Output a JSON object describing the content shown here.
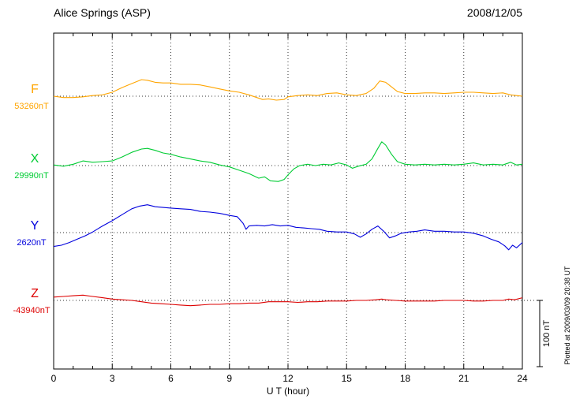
{
  "chart_data": {
    "type": "line",
    "title": "Alice Springs (ASP)",
    "date": "2008/12/05",
    "xlabel": "U T (hour)",
    "ylabel": "",
    "units": "nT",
    "xlim": [
      0,
      24
    ],
    "x_ticks": [
      0,
      3,
      6,
      9,
      12,
      15,
      18,
      21,
      24
    ],
    "x_minor_tick_interval": 1,
    "grid": "dotted vertical lines at 3-hour ticks; dotted horizontal baseline per trace",
    "scale_bar": {
      "label": "100 nT",
      "nT": 100
    },
    "footnote": "Plotted at 2009/03/09 20:38 UT",
    "series": [
      {
        "name": "F",
        "baseline_label": "53260nT",
        "color": "#FFA500",
        "points": [
          [
            0,
            0
          ],
          [
            0.5,
            -2
          ],
          [
            1,
            -2
          ],
          [
            1.5,
            -1
          ],
          [
            2,
            1
          ],
          [
            2.5,
            2
          ],
          [
            3,
            6
          ],
          [
            3.5,
            13
          ],
          [
            4,
            19
          ],
          [
            4.5,
            25
          ],
          [
            4.8,
            24
          ],
          [
            5.2,
            21
          ],
          [
            5.6,
            20
          ],
          [
            6,
            20
          ],
          [
            6.5,
            18
          ],
          [
            7,
            18
          ],
          [
            7.5,
            17
          ],
          [
            8,
            14
          ],
          [
            8.5,
            11
          ],
          [
            9,
            8
          ],
          [
            9.5,
            6
          ],
          [
            10,
            2
          ],
          [
            10.4,
            -2
          ],
          [
            10.7,
            -5
          ],
          [
            11,
            -4
          ],
          [
            11.4,
            -6
          ],
          [
            11.8,
            -5
          ],
          [
            12,
            -1
          ],
          [
            12.5,
            1
          ],
          [
            13,
            2
          ],
          [
            13.5,
            1
          ],
          [
            14,
            4
          ],
          [
            14.5,
            5
          ],
          [
            15,
            2
          ],
          [
            15.5,
            1
          ],
          [
            16,
            4
          ],
          [
            16.4,
            12
          ],
          [
            16.7,
            23
          ],
          [
            17,
            21
          ],
          [
            17.3,
            14
          ],
          [
            17.6,
            7
          ],
          [
            18,
            4
          ],
          [
            18.5,
            4
          ],
          [
            19,
            5
          ],
          [
            19.5,
            5
          ],
          [
            20,
            4
          ],
          [
            20.5,
            5
          ],
          [
            21,
            6
          ],
          [
            21.5,
            6
          ],
          [
            22,
            5
          ],
          [
            22.5,
            4
          ],
          [
            23,
            5
          ],
          [
            23.4,
            2
          ],
          [
            23.7,
            1
          ],
          [
            24,
            0
          ]
        ]
      },
      {
        "name": "X",
        "baseline_label": "29990nT",
        "color": "#00CC33",
        "points": [
          [
            0,
            1
          ],
          [
            0.5,
            -1
          ],
          [
            1,
            2
          ],
          [
            1.5,
            7
          ],
          [
            2,
            5
          ],
          [
            2.5,
            6
          ],
          [
            3,
            7
          ],
          [
            3.5,
            13
          ],
          [
            4,
            20
          ],
          [
            4.5,
            25
          ],
          [
            4.8,
            26
          ],
          [
            5.2,
            23
          ],
          [
            5.6,
            19
          ],
          [
            6,
            17
          ],
          [
            6.5,
            13
          ],
          [
            7,
            10
          ],
          [
            7.5,
            7
          ],
          [
            8,
            5
          ],
          [
            8.5,
            1
          ],
          [
            9,
            -2
          ],
          [
            9.5,
            -7
          ],
          [
            10,
            -12
          ],
          [
            10.5,
            -19
          ],
          [
            10.8,
            -17
          ],
          [
            11.1,
            -23
          ],
          [
            11.5,
            -24
          ],
          [
            11.8,
            -21
          ],
          [
            12,
            -14
          ],
          [
            12.3,
            -5
          ],
          [
            12.6,
            0
          ],
          [
            13,
            2
          ],
          [
            13.4,
            0
          ],
          [
            13.8,
            2
          ],
          [
            14.2,
            1
          ],
          [
            14.6,
            4
          ],
          [
            15,
            1
          ],
          [
            15.3,
            -4
          ],
          [
            15.6,
            -1
          ],
          [
            16,
            2
          ],
          [
            16.3,
            10
          ],
          [
            16.6,
            26
          ],
          [
            16.8,
            36
          ],
          [
            17,
            31
          ],
          [
            17.3,
            17
          ],
          [
            17.6,
            6
          ],
          [
            18,
            2
          ],
          [
            18.5,
            1
          ],
          [
            19,
            2
          ],
          [
            19.5,
            1
          ],
          [
            20,
            2
          ],
          [
            20.5,
            1
          ],
          [
            21,
            2
          ],
          [
            21.5,
            4
          ],
          [
            22,
            1
          ],
          [
            22.5,
            2
          ],
          [
            23,
            1
          ],
          [
            23.4,
            5
          ],
          [
            23.7,
            1
          ],
          [
            24,
            2
          ]
        ]
      },
      {
        "name": "Y",
        "baseline_label": "2620nT",
        "color": "#0000DD",
        "points": [
          [
            0,
            -21
          ],
          [
            0.4,
            -19
          ],
          [
            0.8,
            -15
          ],
          [
            1.2,
            -10
          ],
          [
            1.6,
            -5
          ],
          [
            2,
            1
          ],
          [
            2.5,
            10
          ],
          [
            3,
            18
          ],
          [
            3.5,
            27
          ],
          [
            4,
            36
          ],
          [
            4.4,
            40
          ],
          [
            4.8,
            42
          ],
          [
            5.2,
            39
          ],
          [
            5.6,
            38
          ],
          [
            6,
            37
          ],
          [
            6.5,
            36
          ],
          [
            7,
            35
          ],
          [
            7.5,
            32
          ],
          [
            8,
            31
          ],
          [
            8.5,
            29
          ],
          [
            9,
            26
          ],
          [
            9.4,
            24
          ],
          [
            9.7,
            14
          ],
          [
            9.85,
            5
          ],
          [
            10,
            10
          ],
          [
            10.4,
            11
          ],
          [
            10.8,
            10
          ],
          [
            11.2,
            12
          ],
          [
            11.6,
            10
          ],
          [
            12,
            11
          ],
          [
            12.4,
            8
          ],
          [
            12.8,
            7
          ],
          [
            13.2,
            6
          ],
          [
            13.6,
            5
          ],
          [
            14,
            2
          ],
          [
            14.5,
            1
          ],
          [
            15,
            1
          ],
          [
            15.4,
            -2
          ],
          [
            15.7,
            -7
          ],
          [
            16,
            -2
          ],
          [
            16.3,
            5
          ],
          [
            16.6,
            10
          ],
          [
            16.9,
            2
          ],
          [
            17.2,
            -8
          ],
          [
            17.5,
            -5
          ],
          [
            17.8,
            -1
          ],
          [
            18.2,
            1
          ],
          [
            18.6,
            2
          ],
          [
            19,
            4
          ],
          [
            19.5,
            2
          ],
          [
            20,
            2
          ],
          [
            20.5,
            1
          ],
          [
            21,
            1
          ],
          [
            21.5,
            -1
          ],
          [
            22,
            -5
          ],
          [
            22.4,
            -10
          ],
          [
            22.8,
            -14
          ],
          [
            23.1,
            -20
          ],
          [
            23.3,
            -26
          ],
          [
            23.5,
            -19
          ],
          [
            23.7,
            -23
          ],
          [
            24,
            -15
          ]
        ]
      },
      {
        "name": "Z",
        "baseline_label": "-43940nT",
        "color": "#DD0000",
        "points": [
          [
            0,
            5
          ],
          [
            0.5,
            6
          ],
          [
            1,
            7
          ],
          [
            1.5,
            8
          ],
          [
            2,
            6
          ],
          [
            2.5,
            4
          ],
          [
            3,
            2
          ],
          [
            3.5,
            1
          ],
          [
            4,
            0
          ],
          [
            4.5,
            -2
          ],
          [
            5,
            -4
          ],
          [
            5.5,
            -5
          ],
          [
            6,
            -6
          ],
          [
            6.5,
            -7
          ],
          [
            7,
            -8
          ],
          [
            7.5,
            -7
          ],
          [
            8,
            -6
          ],
          [
            8.5,
            -6
          ],
          [
            9,
            -5
          ],
          [
            9.5,
            -5
          ],
          [
            10,
            -4
          ],
          [
            10.5,
            -4
          ],
          [
            11,
            -2
          ],
          [
            11.5,
            -2
          ],
          [
            12,
            -2
          ],
          [
            12.5,
            -3
          ],
          [
            13,
            -2
          ],
          [
            13.5,
            -2
          ],
          [
            14,
            -1
          ],
          [
            14.5,
            -1
          ],
          [
            15,
            -1
          ],
          [
            15.5,
            0
          ],
          [
            16,
            0
          ],
          [
            16.5,
            1
          ],
          [
            16.8,
            2
          ],
          [
            17,
            1
          ],
          [
            17.5,
            0
          ],
          [
            18,
            -1
          ],
          [
            18.5,
            -1
          ],
          [
            19,
            -1
          ],
          [
            19.5,
            -1
          ],
          [
            20,
            0
          ],
          [
            20.5,
            0
          ],
          [
            21,
            0
          ],
          [
            21.5,
            -1
          ],
          [
            22,
            -1
          ],
          [
            22.5,
            0
          ],
          [
            23,
            0
          ],
          [
            23.3,
            2
          ],
          [
            23.6,
            1
          ],
          [
            24,
            4
          ]
        ]
      }
    ]
  }
}
